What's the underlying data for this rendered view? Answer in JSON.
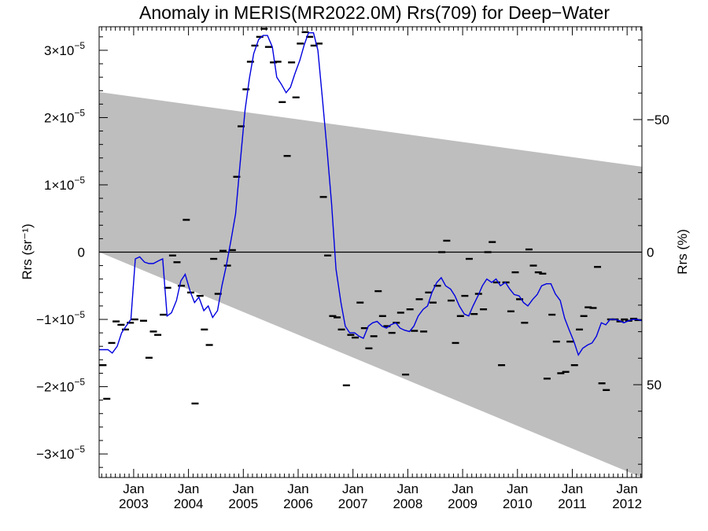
{
  "chart_data": {
    "type": "line",
    "title": "Anomaly in MERIS(MR2022.0M) Rrs(709) for Deep−Water",
    "ylabel_left": "Rrs (sr⁻¹)",
    "ylabel_right": "Rrs (%)",
    "xlim": [
      2002.37,
      2012.27
    ],
    "ylim": [
      -3.35e-05,
      3.35e-05
    ],
    "y2lim": [
      85,
      -85
    ],
    "y_scale_exponent": -5,
    "y_ticks": [
      {
        "value": 3e-05,
        "mantissa": "3",
        "sign": ""
      },
      {
        "value": 2e-05,
        "mantissa": "2",
        "sign": ""
      },
      {
        "value": 1e-05,
        "mantissa": "1",
        "sign": ""
      },
      {
        "value": 0,
        "label": "0"
      },
      {
        "value": -1e-05,
        "mantissa": "1",
        "sign": "−"
      },
      {
        "value": -2e-05,
        "mantissa": "2",
        "sign": "−"
      },
      {
        "value": -3e-05,
        "mantissa": "3",
        "sign": "−"
      }
    ],
    "y2_ticks": [
      {
        "value": -50,
        "label": "−50"
      },
      {
        "value": 0,
        "label": "0"
      },
      {
        "value": 50,
        "label": "50"
      }
    ],
    "x_ticks": [
      {
        "value": 2003.0,
        "month": "Jan",
        "year": "2003"
      },
      {
        "value": 2004.0,
        "month": "Jan",
        "year": "2004"
      },
      {
        "value": 2005.0,
        "month": "Jan",
        "year": "2005"
      },
      {
        "value": 2006.0,
        "month": "Jan",
        "year": "2006"
      },
      {
        "value": 2007.0,
        "month": "Jan",
        "year": "2007"
      },
      {
        "value": 2008.0,
        "month": "Jan",
        "year": "2008"
      },
      {
        "value": 2009.0,
        "month": "Jan",
        "year": "2009"
      },
      {
        "value": 2010.0,
        "month": "Jan",
        "year": "2010"
      },
      {
        "value": 2011.0,
        "month": "Jan",
        "year": "2011"
      },
      {
        "value": 2012.0,
        "month": "Jan",
        "year": "2012"
      }
    ],
    "uncertainty_band": {
      "color": "#bebebe",
      "upper": [
        [
          2002.37,
          2.38e-05
        ],
        [
          2012.27,
          1.27e-05
        ]
      ],
      "lower": [
        [
          2002.37,
          0.0
        ],
        [
          2012.27,
          -3.35e-05
        ]
      ]
    },
    "zero_line": true,
    "series": [
      {
        "kind": "line",
        "color": "#0000e0",
        "x": [
          2002.37,
          2002.45,
          2002.53,
          2002.61,
          2002.7,
          2002.78,
          2002.86,
          2002.95,
          2003.03,
          2003.11,
          2003.2,
          2003.28,
          2003.36,
          2003.45,
          2003.53,
          2003.61,
          2003.69,
          2003.78,
          2003.86,
          2003.94,
          2004.03,
          2004.11,
          2004.19,
          2004.28,
          2004.36,
          2004.44,
          2004.53,
          2004.61,
          2004.69,
          2004.78,
          2004.86,
          2004.94,
          2005.03,
          2005.11,
          2005.19,
          2005.28,
          2005.36,
          2005.44,
          2005.53,
          2005.61,
          2005.69,
          2005.78,
          2005.86,
          2005.94,
          2006.03,
          2006.11,
          2006.19,
          2006.28,
          2006.36,
          2006.44,
          2006.53,
          2006.61,
          2006.69,
          2006.78,
          2006.86,
          2006.94,
          2007.03,
          2007.11,
          2007.19,
          2007.28,
          2007.36,
          2007.44,
          2007.53,
          2007.61,
          2007.69,
          2007.78,
          2007.86,
          2007.94,
          2008.03,
          2008.11,
          2008.19,
          2008.28,
          2008.36,
          2008.44,
          2008.53,
          2008.61,
          2008.69,
          2008.78,
          2008.86,
          2008.94,
          2009.03,
          2009.11,
          2009.19,
          2009.28,
          2009.36,
          2009.44,
          2009.53,
          2009.61,
          2009.69,
          2009.78,
          2009.86,
          2009.94,
          2010.03,
          2010.11,
          2010.19,
          2010.28,
          2010.36,
          2010.44,
          2010.53,
          2010.61,
          2010.69,
          2010.78,
          2010.86,
          2010.94,
          2011.03,
          2011.11,
          2011.19,
          2011.28,
          2011.36,
          2011.44,
          2011.53,
          2011.61,
          2011.69,
          2011.78,
          2011.86,
          2011.94,
          2012.03,
          2012.11,
          2012.19,
          2012.27
        ],
        "y": [
          -1.45e-05,
          -1.45e-05,
          -1.45e-05,
          -1.5e-05,
          -1.4e-05,
          -1.2e-05,
          -1.1e-05,
          -1e-05,
          -1e-06,
          -7e-07,
          -1.5e-06,
          -1.7e-06,
          -1.7e-06,
          -1.3e-06,
          -1e-06,
          -9.5e-06,
          -9e-06,
          -7.2e-06,
          -4.3e-06,
          -3.3e-06,
          -5.8e-06,
          -7.5e-06,
          -6.7e-06,
          -8.7e-06,
          -8e-06,
          -9.7e-06,
          -8.7e-06,
          -5e-06,
          -2e-06,
          2e-06,
          5.7e-06,
          1.3e-05,
          2.1e-05,
          2.58e-05,
          2.95e-05,
          3.16e-05,
          3.22e-05,
          3.22e-05,
          3.05e-05,
          2.6e-05,
          2.5e-05,
          2.37e-05,
          2.45e-05,
          2.65e-05,
          2.85e-05,
          3.08e-05,
          3.26e-05,
          3.26e-05,
          3e-05,
          2.3e-05,
          1.5e-05,
          7.2e-06,
          -2.5e-06,
          -7.5e-06,
          -1.1e-05,
          -1.2e-05,
          -1.2e-05,
          -1.25e-05,
          -1.28e-05,
          -1.1e-05,
          -1.05e-05,
          -1.03e-05,
          -1.1e-05,
          -1.13e-05,
          -1.08e-05,
          -1.05e-05,
          -1.13e-05,
          -1.16e-05,
          -1.18e-05,
          -1.1e-05,
          -9.5e-06,
          -8.5e-06,
          -8e-06,
          -6e-06,
          -4.5e-06,
          -3.8e-06,
          -5e-06,
          -5.5e-06,
          -6.5e-06,
          -8e-06,
          -9.2e-06,
          -9.5e-06,
          -8e-06,
          -6.5e-06,
          -5e-06,
          -4e-06,
          -4.5e-06,
          -4e-06,
          -5e-06,
          -4.5e-06,
          -5.5e-06,
          -6.3e-06,
          -6.5e-06,
          -7.5e-06,
          -8e-06,
          -7e-06,
          -6.3e-06,
          -5e-06,
          -4.7e-06,
          -4.7e-06,
          -6.2e-06,
          -7.2e-06,
          -9.8e-06,
          -1.15e-05,
          -1.33e-05,
          -1.53e-05,
          -1.43e-05,
          -1.38e-05,
          -1.35e-05,
          -1.25e-05,
          -1.05e-05,
          -1.08e-05,
          -1e-05,
          -1e-05,
          -1.02e-05,
          -1.05e-05,
          -1.02e-05,
          -1e-05,
          -1e-05,
          -1.02e-05
        ]
      },
      {
        "kind": "monthly_markers",
        "color": "#000000",
        "points": [
          [
            2002.44,
            -1.68e-05
          ],
          [
            2002.51,
            -2.18e-05
          ],
          [
            2002.6,
            -1.35e-05
          ],
          [
            2002.68,
            -1.03e-05
          ],
          [
            2002.77,
            -1.08e-05
          ],
          [
            2002.85,
            -1.15e-05
          ],
          [
            2002.94,
            -1.05e-05
          ],
          [
            2003.02,
            -1e-05
          ],
          [
            2003.18,
            -1.02e-05
          ],
          [
            2003.28,
            -1.57e-05
          ],
          [
            2003.36,
            -1.18e-05
          ],
          [
            2003.44,
            -1.23e-05
          ],
          [
            2003.54,
            -9.3e-06
          ],
          [
            2003.62,
            -5.3e-06
          ],
          [
            2003.71,
            -5e-07
          ],
          [
            2003.79,
            -1.5e-06
          ],
          [
            2003.87,
            -5e-06
          ],
          [
            2003.96,
            4.8e-06
          ],
          [
            2004.04,
            -6e-06
          ],
          [
            2004.12,
            -2.25e-05
          ],
          [
            2004.21,
            -6.5e-06
          ],
          [
            2004.29,
            -1.15e-05
          ],
          [
            2004.38,
            -1.38e-05
          ],
          [
            2004.46,
            -1e-06
          ],
          [
            2004.54,
            -6.2e-06
          ],
          [
            2004.63,
            2e-07
          ],
          [
            2004.71,
            -2e-06
          ],
          [
            2004.8,
            3e-07
          ],
          [
            2004.88,
            1.12e-05
          ],
          [
            2004.96,
            1.87e-05
          ],
          [
            2005.05,
            2.42e-05
          ],
          [
            2005.13,
            2.83e-05
          ],
          [
            2005.21,
            3.07e-05
          ],
          [
            2005.3,
            3.2e-05
          ],
          [
            2005.38,
            3.32e-05
          ],
          [
            2005.46,
            3.05e-05
          ],
          [
            2005.55,
            2.82e-05
          ],
          [
            2005.63,
            2.83e-05
          ],
          [
            2005.71,
            2.23e-05
          ],
          [
            2005.8,
            1.43e-05
          ],
          [
            2005.88,
            2.82e-05
          ],
          [
            2005.96,
            2.3e-05
          ],
          [
            2006.04,
            3.1e-05
          ],
          [
            2006.13,
            3.27e-05
          ],
          [
            2006.21,
            3.2e-05
          ],
          [
            2006.29,
            3.07e-05
          ],
          [
            2006.38,
            3.1e-05
          ],
          [
            2006.46,
            8.2e-06
          ],
          [
            2006.54,
            -5e-07
          ],
          [
            2006.63,
            -9.5e-06
          ],
          [
            2006.71,
            -9.7e-06
          ],
          [
            2006.79,
            -1.15e-05
          ],
          [
            2006.88,
            -1.98e-05
          ],
          [
            2006.96,
            -1.23e-05
          ],
          [
            2007.04,
            -1.27e-05
          ],
          [
            2007.13,
            -7.5e-06
          ],
          [
            2007.21,
            -1.13e-05
          ],
          [
            2007.29,
            -1.43e-05
          ],
          [
            2007.38,
            -1.25e-05
          ],
          [
            2007.46,
            -5.8e-06
          ],
          [
            2007.54,
            -9.5e-06
          ],
          [
            2007.62,
            -1.1e-05
          ],
          [
            2007.71,
            -1.2e-05
          ],
          [
            2007.79,
            -1.05e-05
          ],
          [
            2007.87,
            -9e-06
          ],
          [
            2007.96,
            -1.82e-05
          ],
          [
            2008.04,
            -8.5e-06
          ],
          [
            2008.12,
            -1.17e-05
          ],
          [
            2008.21,
            -7e-06
          ],
          [
            2008.29,
            -1.18e-05
          ],
          [
            2008.38,
            -6e-06
          ],
          [
            2008.46,
            -7.5e-06
          ],
          [
            2008.54,
            -5e-06
          ],
          [
            2008.62,
            0.0
          ],
          [
            2008.71,
            1.7e-06
          ],
          [
            2008.79,
            -7.2e-06
          ],
          [
            2008.87,
            -1.35e-05
          ],
          [
            2008.96,
            -9.5e-06
          ],
          [
            2009.04,
            -6.5e-06
          ],
          [
            2009.12,
            -1e-06
          ],
          [
            2009.21,
            -9.2e-06
          ],
          [
            2009.29,
            -6.2e-06
          ],
          [
            2009.38,
            -8.5e-06
          ],
          [
            2009.46,
            0.0
          ],
          [
            2009.54,
            1.5e-06
          ],
          [
            2009.62,
            -4.5e-06
          ],
          [
            2009.71,
            -1.68e-05
          ],
          [
            2009.79,
            -4.5e-06
          ],
          [
            2009.88,
            -8.8e-06
          ],
          [
            2009.96,
            -3e-06
          ],
          [
            2010.04,
            -7e-06
          ],
          [
            2010.13,
            -1.05e-05
          ],
          [
            2010.21,
            4e-07
          ],
          [
            2010.29,
            -2e-06
          ],
          [
            2010.38,
            -3e-06
          ],
          [
            2010.46,
            -3.2e-06
          ],
          [
            2010.54,
            -1.88e-05
          ],
          [
            2010.63,
            -9.3e-06
          ],
          [
            2010.71,
            -1.33e-05
          ],
          [
            2010.79,
            -1.8e-05
          ],
          [
            2010.88,
            -1.78e-05
          ],
          [
            2010.96,
            -1.33e-05
          ],
          [
            2011.04,
            -1.68e-05
          ],
          [
            2011.13,
            -1.15e-05
          ],
          [
            2011.21,
            -9.5e-06
          ],
          [
            2011.29,
            -8.2e-06
          ],
          [
            2011.38,
            -8.3e-06
          ],
          [
            2011.46,
            -2.2e-06
          ],
          [
            2011.54,
            -1.95e-05
          ],
          [
            2011.62,
            -2.05e-05
          ],
          [
            2011.7,
            -1e-05
          ],
          [
            2011.78,
            -1e-05
          ],
          [
            2011.87,
            -1.03e-05
          ],
          [
            2011.95,
            -1e-05
          ],
          [
            2012.03,
            -1.02e-05
          ],
          [
            2012.12,
            -9.9e-06
          ],
          [
            2012.2,
            -1.01e-05
          ]
        ]
      }
    ]
  }
}
